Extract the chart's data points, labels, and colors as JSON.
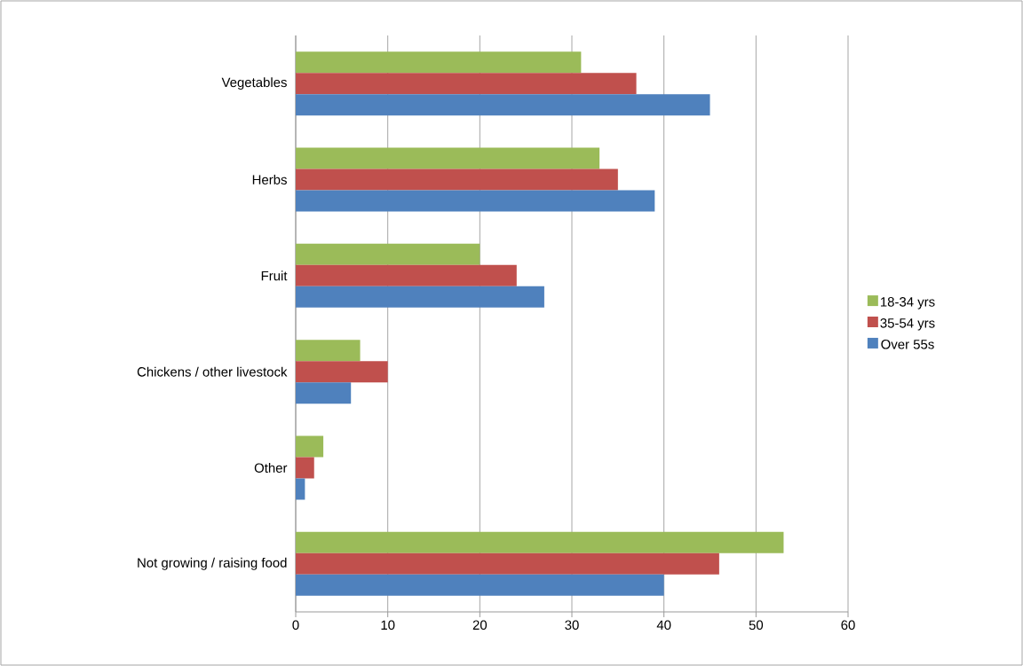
{
  "chart_data": {
    "type": "bar",
    "orientation": "horizontal",
    "categories": [
      "Vegetables",
      "Herbs",
      "Fruit",
      "Chickens / other livestock",
      "Other",
      "Not growing / raising food"
    ],
    "series": [
      {
        "name": "18-34 yrs",
        "color": "#9bbb59",
        "values": [
          31,
          33,
          20,
          7,
          3,
          53
        ]
      },
      {
        "name": "35-54 yrs",
        "color": "#c0504d",
        "values": [
          37,
          35,
          24,
          10,
          2,
          46
        ]
      },
      {
        "name": "Over 55s",
        "color": "#4f81bd",
        "values": [
          45,
          39,
          27,
          6,
          1,
          40
        ]
      }
    ],
    "xlim": [
      0,
      60
    ],
    "xticks": [
      0,
      10,
      20,
      30,
      40,
      50,
      60
    ],
    "grid": "x",
    "legend": "right"
  }
}
